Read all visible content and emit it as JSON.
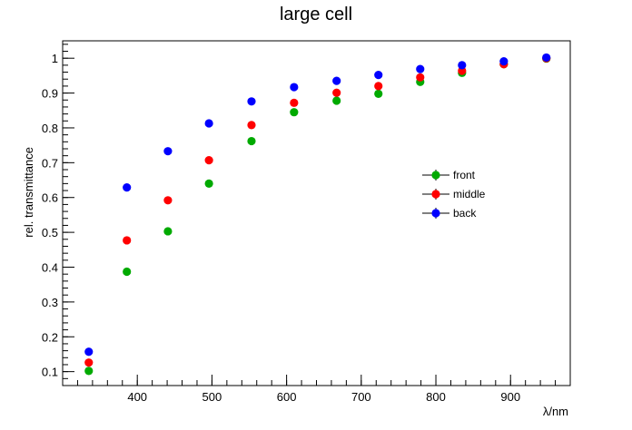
{
  "chart_data": {
    "type": "scatter",
    "title": "large cell",
    "xlabel": "λ/nm",
    "ylabel": "rel. transmittance",
    "xlim": [
      300,
      980
    ],
    "ylim": [
      0.06,
      1.05
    ],
    "xticks": [
      400,
      500,
      600,
      700,
      800,
      900
    ],
    "yticks": [
      0.1,
      0.2,
      0.3,
      0.4,
      0.5,
      0.6,
      0.7,
      0.8,
      0.9,
      1
    ],
    "x_minor_step": 20,
    "y_minor_step": 0.02,
    "legend_position": "right",
    "series": [
      {
        "name": "front",
        "color": "#00aa00",
        "x": [
          335,
          386,
          441,
          496,
          553,
          610,
          667,
          723,
          779,
          835,
          891,
          948
        ],
        "y": [
          0.102,
          0.387,
          0.503,
          0.64,
          0.762,
          0.845,
          0.878,
          0.898,
          0.932,
          0.958,
          0.983,
          0.999
        ]
      },
      {
        "name": "middle",
        "color": "#ff0000",
        "x": [
          335,
          386,
          441,
          496,
          553,
          610,
          667,
          723,
          779,
          835,
          891,
          948
        ],
        "y": [
          0.126,
          0.477,
          0.592,
          0.707,
          0.808,
          0.872,
          0.901,
          0.92,
          0.945,
          0.964,
          0.983,
          1.0
        ]
      },
      {
        "name": "back",
        "color": "#0000ff",
        "x": [
          335,
          386,
          441,
          496,
          553,
          610,
          667,
          723,
          779,
          835,
          891,
          948
        ],
        "y": [
          0.157,
          0.629,
          0.733,
          0.813,
          0.876,
          0.917,
          0.935,
          0.952,
          0.969,
          0.98,
          0.991,
          1.002
        ]
      }
    ]
  }
}
